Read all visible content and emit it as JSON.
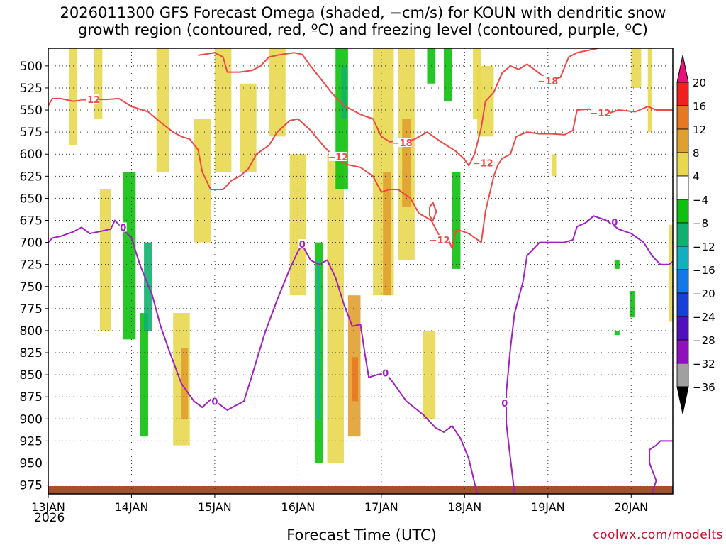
{
  "chart_data": {
    "type": "heatmap",
    "title_line1": "2026011300 GFS Forecast Omega (shaded, −cm/s) for KOUN with dendritic snow",
    "title_line2": "growth region (contoured, red, ºC) and freezing level (contoured, purple, ºC)",
    "xlabel": "Forecast Time (UTC)",
    "credit": "coolwx.com/modelts",
    "x_year": "2026",
    "x_ticks": [
      {
        "label": "13JAN",
        "day": 0
      },
      {
        "label": "14JAN",
        "day": 1
      },
      {
        "label": "15JAN",
        "day": 2
      },
      {
        "label": "16JAN",
        "day": 3
      },
      {
        "label": "17JAN",
        "day": 4
      },
      {
        "label": "18JAN",
        "day": 5
      },
      {
        "label": "19JAN",
        "day": 6
      },
      {
        "label": "20JAN",
        "day": 7
      }
    ],
    "xlim": [
      0,
      7.5
    ],
    "y_ticks": [
      500,
      525,
      550,
      575,
      600,
      625,
      650,
      675,
      700,
      725,
      750,
      775,
      800,
      825,
      850,
      875,
      900,
      925,
      950,
      975
    ],
    "ylim": [
      480,
      985
    ],
    "ylabel": "",
    "colorbar": {
      "labels": [
        "20",
        "16",
        "12",
        "8",
        "4",
        "−4",
        "−8",
        "−12",
        "−16",
        "−20",
        "−24",
        "−28",
        "−32",
        "−36"
      ],
      "colors": [
        "#f02020",
        "#e87820",
        "#e0a030",
        "#e8d850",
        "#ffffff",
        "#10c010",
        "#10b070",
        "#10b0c0",
        "#1078e8",
        "#1840d8",
        "#5010c0",
        "#9010c0",
        "#a0a0a0"
      ],
      "top_color": "#e8107a",
      "bottom_color": "#000000"
    },
    "contour_labels": [
      {
        "text": "−12",
        "color": "#f04848",
        "day": 0.5,
        "p": 538
      },
      {
        "text": "−18",
        "color": "#f04848",
        "day": 4.25,
        "p": 587
      },
      {
        "text": "−12",
        "color": "#f04848",
        "day": 3.48,
        "p": 603
      },
      {
        "text": "−12",
        "color": "#f04848",
        "day": 5.22,
        "p": 610
      },
      {
        "text": "−12",
        "color": "#f04848",
        "day": 4.7,
        "p": 697
      },
      {
        "text": "−18",
        "color": "#f04848",
        "day": 6.0,
        "p": 517
      },
      {
        "text": "−12",
        "color": "#f04848",
        "day": 6.63,
        "p": 553
      },
      {
        "text": "0",
        "color": "#a020c0",
        "day": 0.9,
        "p": 683
      },
      {
        "text": "0",
        "color": "#a020c0",
        "day": 2.0,
        "p": 880
      },
      {
        "text": "0",
        "color": "#a020c0",
        "day": 3.05,
        "p": 702
      },
      {
        "text": "0",
        "color": "#a020c0",
        "day": 4.05,
        "p": 848
      },
      {
        "text": "0",
        "color": "#a020c0",
        "day": 5.48,
        "p": 882
      },
      {
        "text": "0",
        "color": "#a020c0",
        "day": 6.8,
        "p": 677
      }
    ],
    "contours": {
      "minus12": [
        [
          0,
          545
        ],
        [
          0.05,
          537
        ],
        [
          0.15,
          537
        ],
        [
          0.3,
          540
        ],
        [
          0.5,
          538
        ],
        [
          0.7,
          538
        ],
        [
          0.85,
          537
        ],
        [
          1.0,
          546
        ],
        [
          1.2,
          552
        ],
        [
          1.35,
          564
        ],
        [
          1.5,
          575
        ],
        [
          1.6,
          580
        ],
        [
          1.7,
          583
        ],
        [
          1.8,
          595
        ],
        [
          1.85,
          620
        ],
        [
          1.95,
          640
        ],
        [
          2.1,
          640
        ],
        [
          2.2,
          630
        ],
        [
          2.3,
          625
        ],
        [
          2.4,
          617
        ],
        [
          2.5,
          600
        ],
        [
          2.65,
          590
        ],
        [
          2.75,
          575
        ],
        [
          2.9,
          562
        ],
        [
          3.0,
          560
        ],
        [
          3.15,
          573
        ],
        [
          3.3,
          590
        ],
        [
          3.45,
          605
        ],
        [
          3.6,
          612
        ],
        [
          3.75,
          615
        ],
        [
          3.9,
          625
        ],
        [
          4.0,
          643
        ],
        [
          4.1,
          640
        ],
        [
          4.2,
          640
        ],
        [
          4.35,
          650
        ],
        [
          4.45,
          667
        ],
        [
          4.6,
          675
        ],
        [
          4.7,
          693
        ],
        [
          4.8,
          695
        ],
        [
          4.85,
          707
        ],
        [
          4.9,
          685
        ],
        [
          5.05,
          690
        ],
        [
          5.2,
          700
        ],
        [
          5.25,
          665
        ],
        [
          5.3,
          645
        ],
        [
          5.35,
          625
        ],
        [
          5.4,
          612
        ],
        [
          5.45,
          605
        ],
        [
          5.55,
          600
        ],
        [
          5.62,
          580
        ],
        [
          5.75,
          575
        ],
        [
          5.9,
          577
        ],
        [
          6.05,
          577
        ],
        [
          6.2,
          578
        ],
        [
          6.3,
          573
        ],
        [
          6.35,
          550
        ],
        [
          6.5,
          549
        ],
        [
          6.65,
          555
        ],
        [
          6.75,
          553
        ],
        [
          6.85,
          550
        ],
        [
          7.05,
          552
        ],
        [
          7.2,
          546
        ],
        [
          7.3,
          550
        ],
        [
          7.5,
          550
        ]
      ],
      "minus18": [
        [
          1.8,
          488
        ],
        [
          2.0,
          485
        ],
        [
          2.1,
          490
        ],
        [
          2.15,
          507
        ],
        [
          2.3,
          507
        ],
        [
          2.45,
          505
        ],
        [
          2.55,
          500
        ],
        [
          2.65,
          490
        ],
        [
          2.8,
          487
        ],
        [
          2.95,
          485
        ],
        [
          3.05,
          487
        ],
        [
          3.15,
          500
        ],
        [
          3.25,
          512
        ],
        [
          3.4,
          530
        ],
        [
          3.55,
          545
        ],
        [
          3.75,
          555
        ],
        [
          3.9,
          560
        ],
        [
          4.0,
          580
        ],
        [
          4.1,
          586
        ],
        [
          4.2,
          585
        ],
        [
          4.3,
          586
        ],
        [
          4.4,
          583
        ],
        [
          4.55,
          575
        ],
        [
          4.7,
          585
        ],
        [
          4.9,
          597
        ],
        [
          5.0,
          606
        ],
        [
          5.05,
          613
        ],
        [
          5.12,
          600
        ],
        [
          5.2,
          570
        ],
        [
          5.25,
          540
        ],
        [
          5.35,
          530
        ],
        [
          5.45,
          508
        ],
        [
          5.55,
          500
        ],
        [
          5.65,
          504
        ],
        [
          5.75,
          498
        ],
        [
          5.85,
          505
        ],
        [
          5.95,
          512
        ],
        [
          6.0,
          517
        ],
        [
          6.15,
          513
        ],
        [
          6.25,
          490
        ],
        [
          6.35,
          485
        ],
        [
          6.45,
          483
        ],
        [
          6.6,
          480
        ]
      ],
      "freezing": [
        [
          0,
          700
        ],
        [
          0.05,
          695
        ],
        [
          0.15,
          693
        ],
        [
          0.3,
          688
        ],
        [
          0.4,
          683
        ],
        [
          0.5,
          690
        ],
        [
          0.6,
          688
        ],
        [
          0.75,
          685
        ],
        [
          0.8,
          675
        ],
        [
          0.9,
          685
        ],
        [
          1.0,
          695
        ],
        [
          1.1,
          725
        ],
        [
          1.25,
          760
        ],
        [
          1.35,
          795
        ],
        [
          1.45,
          822
        ],
        [
          1.6,
          860
        ],
        [
          1.75,
          880
        ],
        [
          1.85,
          887
        ],
        [
          1.95,
          878
        ],
        [
          2.05,
          883
        ],
        [
          2.15,
          890
        ],
        [
          2.25,
          885
        ],
        [
          2.35,
          880
        ],
        [
          2.45,
          850
        ],
        [
          2.6,
          803
        ],
        [
          2.75,
          765
        ],
        [
          2.9,
          730
        ],
        [
          3.0,
          710
        ],
        [
          3.05,
          703
        ],
        [
          3.15,
          720
        ],
        [
          3.25,
          725
        ],
        [
          3.35,
          720
        ],
        [
          3.45,
          740
        ],
        [
          3.55,
          770
        ],
        [
          3.65,
          795
        ],
        [
          3.75,
          793
        ],
        [
          3.8,
          825
        ],
        [
          3.85,
          853
        ],
        [
          3.95,
          850
        ],
        [
          4.05,
          848
        ],
        [
          4.15,
          860
        ],
        [
          4.3,
          880
        ],
        [
          4.5,
          895
        ],
        [
          4.65,
          910
        ],
        [
          4.75,
          915
        ],
        [
          4.85,
          908
        ],
        [
          4.95,
          922
        ],
        [
          5.05,
          945
        ],
        [
          5.15,
          985
        ]
      ],
      "freezing2": [
        [
          5.6,
          985
        ],
        [
          5.55,
          945
        ],
        [
          5.5,
          905
        ],
        [
          5.5,
          870
        ],
        [
          5.55,
          820
        ],
        [
          5.6,
          780
        ],
        [
          5.7,
          745
        ],
        [
          5.75,
          715
        ],
        [
          5.9,
          700
        ],
        [
          6.05,
          700
        ],
        [
          6.2,
          700
        ],
        [
          6.3,
          697
        ],
        [
          6.35,
          682
        ],
        [
          6.45,
          678
        ],
        [
          6.55,
          670
        ],
        [
          6.7,
          675
        ],
        [
          6.85,
          685
        ],
        [
          7.0,
          690
        ],
        [
          7.15,
          700
        ],
        [
          7.25,
          715
        ],
        [
          7.35,
          725
        ],
        [
          7.45,
          725
        ],
        [
          7.5,
          722
        ]
      ],
      "freezing3": [
        [
          7.25,
          985
        ],
        [
          7.3,
          970
        ],
        [
          7.22,
          950
        ],
        [
          7.22,
          935
        ],
        [
          7.3,
          930
        ],
        [
          7.35,
          925
        ],
        [
          7.45,
          925
        ],
        [
          7.5,
          925
        ]
      ],
      "dgz_small": [
        [
          4.58,
          660
        ],
        [
          4.62,
          655
        ],
        [
          4.66,
          665
        ],
        [
          4.62,
          675
        ],
        [
          4.58,
          670
        ],
        [
          4.58,
          660
        ]
      ]
    },
    "omega_regions": [
      {
        "level": "4to8",
        "day": [
          0.25,
          0.35
        ],
        "p": [
          480,
          590
        ]
      },
      {
        "level": "4to8",
        "day": [
          0.55,
          0.65
        ],
        "p": [
          480,
          560
        ]
      },
      {
        "level": "4to8",
        "day": [
          0.62,
          0.75
        ],
        "p": [
          640,
          800
        ]
      },
      {
        "level": "m8",
        "day": [
          0.9,
          1.05
        ],
        "p": [
          620,
          810
        ]
      },
      {
        "level": "m8",
        "day": [
          1.1,
          1.2
        ],
        "p": [
          780,
          920
        ]
      },
      {
        "level": "m12",
        "day": [
          1.15,
          1.25
        ],
        "p": [
          700,
          800
        ]
      },
      {
        "level": "4to8",
        "day": [
          1.3,
          1.45
        ],
        "p": [
          480,
          620
        ]
      },
      {
        "level": "4to8",
        "day": [
          1.5,
          1.7
        ],
        "p": [
          780,
          930
        ]
      },
      {
        "level": "8to12",
        "day": [
          1.6,
          1.68
        ],
        "p": [
          820,
          900
        ]
      },
      {
        "level": "4to8",
        "day": [
          1.75,
          1.95
        ],
        "p": [
          560,
          700
        ]
      },
      {
        "level": "4to8",
        "day": [
          2.0,
          2.2
        ],
        "p": [
          480,
          620
        ]
      },
      {
        "level": "4to8",
        "day": [
          2.3,
          2.5
        ],
        "p": [
          520,
          620
        ]
      },
      {
        "level": "4to8",
        "day": [
          2.65,
          2.85
        ],
        "p": [
          480,
          580
        ]
      },
      {
        "level": "4to8",
        "day": [
          2.9,
          3.1
        ],
        "p": [
          600,
          760
        ]
      },
      {
        "level": "m8",
        "day": [
          3.2,
          3.3
        ],
        "p": [
          700,
          950
        ]
      },
      {
        "level": "m16",
        "day": [
          3.23,
          3.27
        ],
        "p": [
          720,
          900
        ]
      },
      {
        "level": "4to8",
        "day": [
          3.35,
          3.55
        ],
        "p": [
          600,
          950
        ]
      },
      {
        "level": "8to12",
        "day": [
          3.6,
          3.75
        ],
        "p": [
          760,
          920
        ]
      },
      {
        "level": "12to16",
        "day": [
          3.65,
          3.72
        ],
        "p": [
          830,
          880
        ]
      },
      {
        "level": "m8",
        "day": [
          3.45,
          3.6
        ],
        "p": [
          480,
          640
        ]
      },
      {
        "level": "m12",
        "day": [
          3.52,
          3.58
        ],
        "p": [
          500,
          560
        ]
      },
      {
        "level": "4to8",
        "day": [
          3.9,
          4.15
        ],
        "p": [
          480,
          760
        ]
      },
      {
        "level": "8to12",
        "day": [
          4.02,
          4.12
        ],
        "p": [
          620,
          760
        ]
      },
      {
        "level": "4to8",
        "day": [
          4.2,
          4.4
        ],
        "p": [
          480,
          720
        ]
      },
      {
        "level": "8to12",
        "day": [
          4.25,
          4.35
        ],
        "p": [
          560,
          660
        ]
      },
      {
        "level": "m8",
        "day": [
          4.55,
          4.65
        ],
        "p": [
          480,
          520
        ]
      },
      {
        "level": "m8",
        "day": [
          4.75,
          4.85
        ],
        "p": [
          480,
          540
        ]
      },
      {
        "level": "4to8",
        "day": [
          4.5,
          4.65
        ],
        "p": [
          800,
          900
        ]
      },
      {
        "level": "m8",
        "day": [
          4.85,
          4.95
        ],
        "p": [
          620,
          730
        ]
      },
      {
        "level": "4to8",
        "day": [
          5.1,
          5.2
        ],
        "p": [
          480,
          560
        ]
      },
      {
        "level": "4to8",
        "day": [
          5.15,
          5.35
        ],
        "p": [
          500,
          580
        ]
      },
      {
        "level": "4to8",
        "day": [
          6.05,
          6.1
        ],
        "p": [
          600,
          625
        ]
      },
      {
        "level": "m8",
        "day": [
          6.8,
          6.86
        ],
        "p": [
          720,
          730
        ]
      },
      {
        "level": "m8",
        "day": [
          6.98,
          7.04
        ],
        "p": [
          755,
          785
        ]
      },
      {
        "level": "m8",
        "day": [
          6.8,
          6.86
        ],
        "p": [
          800,
          805
        ]
      },
      {
        "level": "4to8",
        "day": [
          7.45,
          7.5
        ],
        "p": [
          680,
          790
        ]
      },
      {
        "level": "4to8",
        "day": [
          7.0,
          7.12
        ],
        "p": [
          480,
          525
        ]
      },
      {
        "level": "4to8",
        "day": [
          7.2,
          7.25
        ],
        "p": [
          480,
          575
        ]
      }
    ]
  }
}
